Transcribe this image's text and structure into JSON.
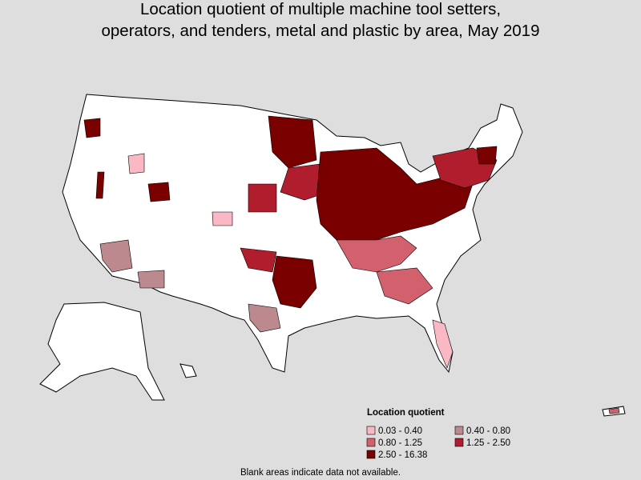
{
  "title": "Location quotient of multiple machine tool setters, operators, and tenders, metal and plastic by area, May 2019",
  "legend": {
    "title": "Location quotient",
    "items": [
      {
        "label": "0.03 - 0.40",
        "color": "#f9b8c4"
      },
      {
        "label": "0.40 - 0.80",
        "color": "#bc8a8e"
      },
      {
        "label": "0.80 - 1.25",
        "color": "#d2616d"
      },
      {
        "label": "1.25 - 2.50",
        "color": "#b01e2e"
      },
      {
        "label": "2.50 - 16.38",
        "color": "#7a0000"
      }
    ]
  },
  "footnote": "Blank areas indicate data not available."
}
